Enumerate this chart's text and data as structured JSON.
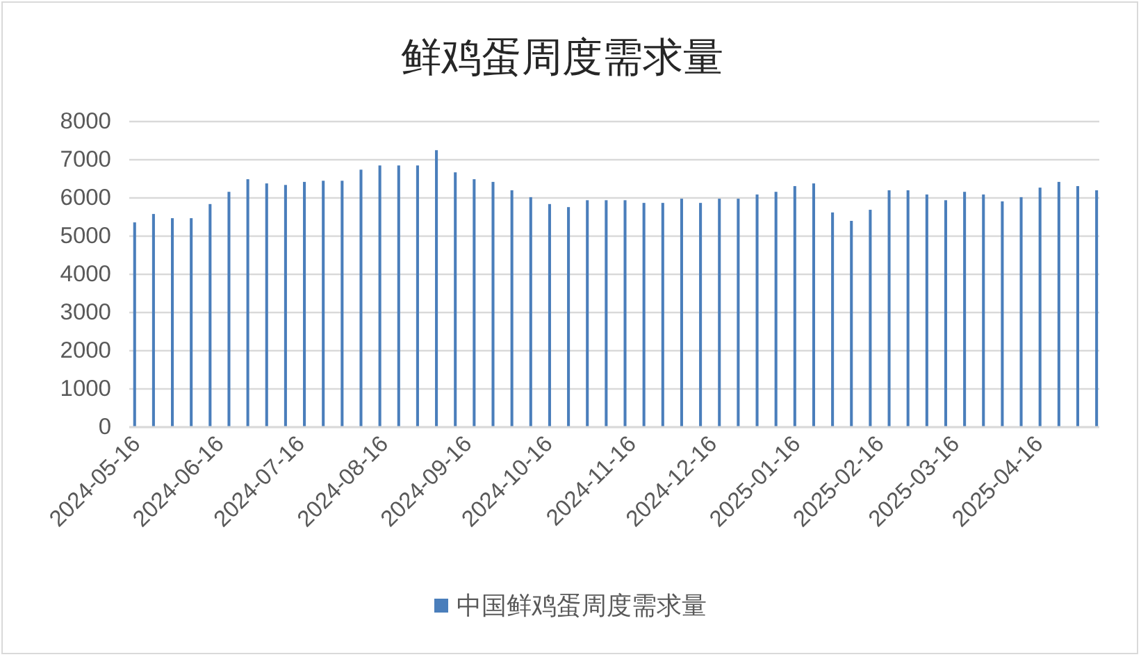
{
  "chart_data": {
    "type": "bar",
    "title": "鲜鸡蛋周度需求量",
    "x": [
      "2024-05-16",
      "2024-05-23",
      "2024-05-30",
      "2024-06-06",
      "2024-06-13",
      "2024-06-20",
      "2024-06-27",
      "2024-07-04",
      "2024-07-11",
      "2024-07-18",
      "2024-07-25",
      "2024-08-01",
      "2024-08-08",
      "2024-08-15",
      "2024-08-22",
      "2024-08-29",
      "2024-09-05",
      "2024-09-12",
      "2024-09-19",
      "2024-09-26",
      "2024-10-03",
      "2024-10-10",
      "2024-10-17",
      "2024-10-24",
      "2024-10-31",
      "2024-11-07",
      "2024-11-14",
      "2024-11-21",
      "2024-11-28",
      "2024-12-05",
      "2024-12-12",
      "2024-12-19",
      "2024-12-26",
      "2025-01-02",
      "2025-01-09",
      "2025-01-16",
      "2025-01-23",
      "2025-01-30",
      "2025-02-06",
      "2025-02-13",
      "2025-02-20",
      "2025-02-27",
      "2025-03-06",
      "2025-03-13",
      "2025-03-20",
      "2025-03-27",
      "2025-04-03",
      "2025-04-10",
      "2025-04-17",
      "2025-04-24",
      "2025-05-01",
      "2025-05-08"
    ],
    "series": [
      {
        "name": "中国鲜鸡蛋周度需求量",
        "color": "#4a7ebb",
        "values": [
          5360,
          5580,
          5470,
          5470,
          5840,
          6160,
          6490,
          6380,
          6340,
          6420,
          6450,
          6450,
          6740,
          6850,
          6850,
          6850,
          7250,
          6670,
          6490,
          6420,
          6200,
          6020,
          5840,
          5760,
          5940,
          5940,
          5940,
          5870,
          5870,
          5980,
          5870,
          5980,
          5980,
          6090,
          6160,
          6310,
          6380,
          5620,
          5400,
          5690,
          6200,
          6200,
          6090,
          5940,
          6160,
          6090,
          5910,
          6020,
          6270,
          6420,
          6310,
          6200
        ]
      }
    ],
    "xlim": [
      "2024-05-14",
      "2025-05-09"
    ],
    "xticks": [
      "2024-05-16",
      "2024-06-16",
      "2024-07-16",
      "2024-08-16",
      "2024-09-16",
      "2024-10-16",
      "2024-11-16",
      "2024-12-16",
      "2025-01-16",
      "2025-02-16",
      "2025-03-16",
      "2025-04-16"
    ],
    "ylim": [
      0,
      8000
    ],
    "yticks": [
      0,
      1000,
      2000,
      3000,
      4000,
      5000,
      6000,
      7000,
      8000
    ],
    "grid": "y",
    "legend": "bottom"
  }
}
